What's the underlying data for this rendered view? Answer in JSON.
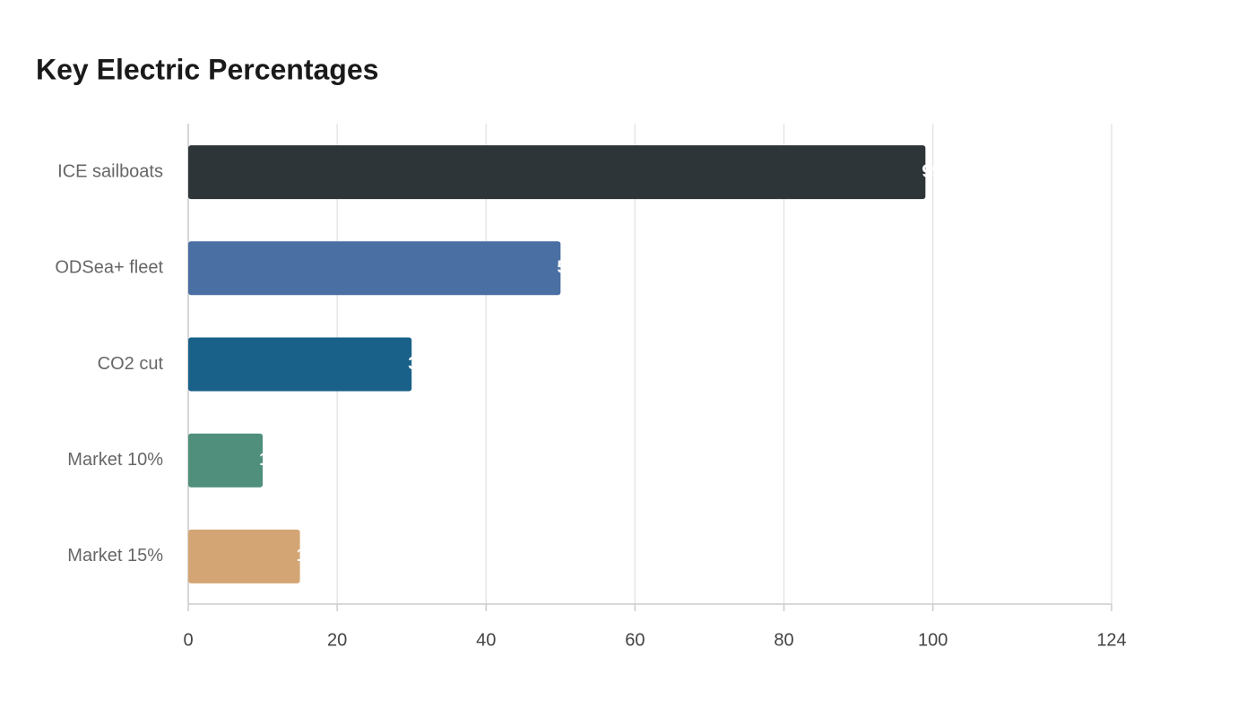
{
  "chart_data": {
    "type": "bar",
    "orientation": "horizontal",
    "title": "Key Electric Percentages",
    "categories": [
      "ICE sailboats",
      "ODSea+ fleet",
      "CO2 cut",
      "Market 10%",
      "Market 15%"
    ],
    "values": [
      99,
      50,
      30,
      10,
      15
    ],
    "colors": [
      "#2e3538",
      "#4a6fa3",
      "#1a6189",
      "#4f8f7b",
      "#d4a574"
    ],
    "xlim": [
      0,
      124
    ],
    "xticks": [
      0,
      20,
      40,
      60,
      80,
      100,
      124
    ],
    "grid": true
  }
}
